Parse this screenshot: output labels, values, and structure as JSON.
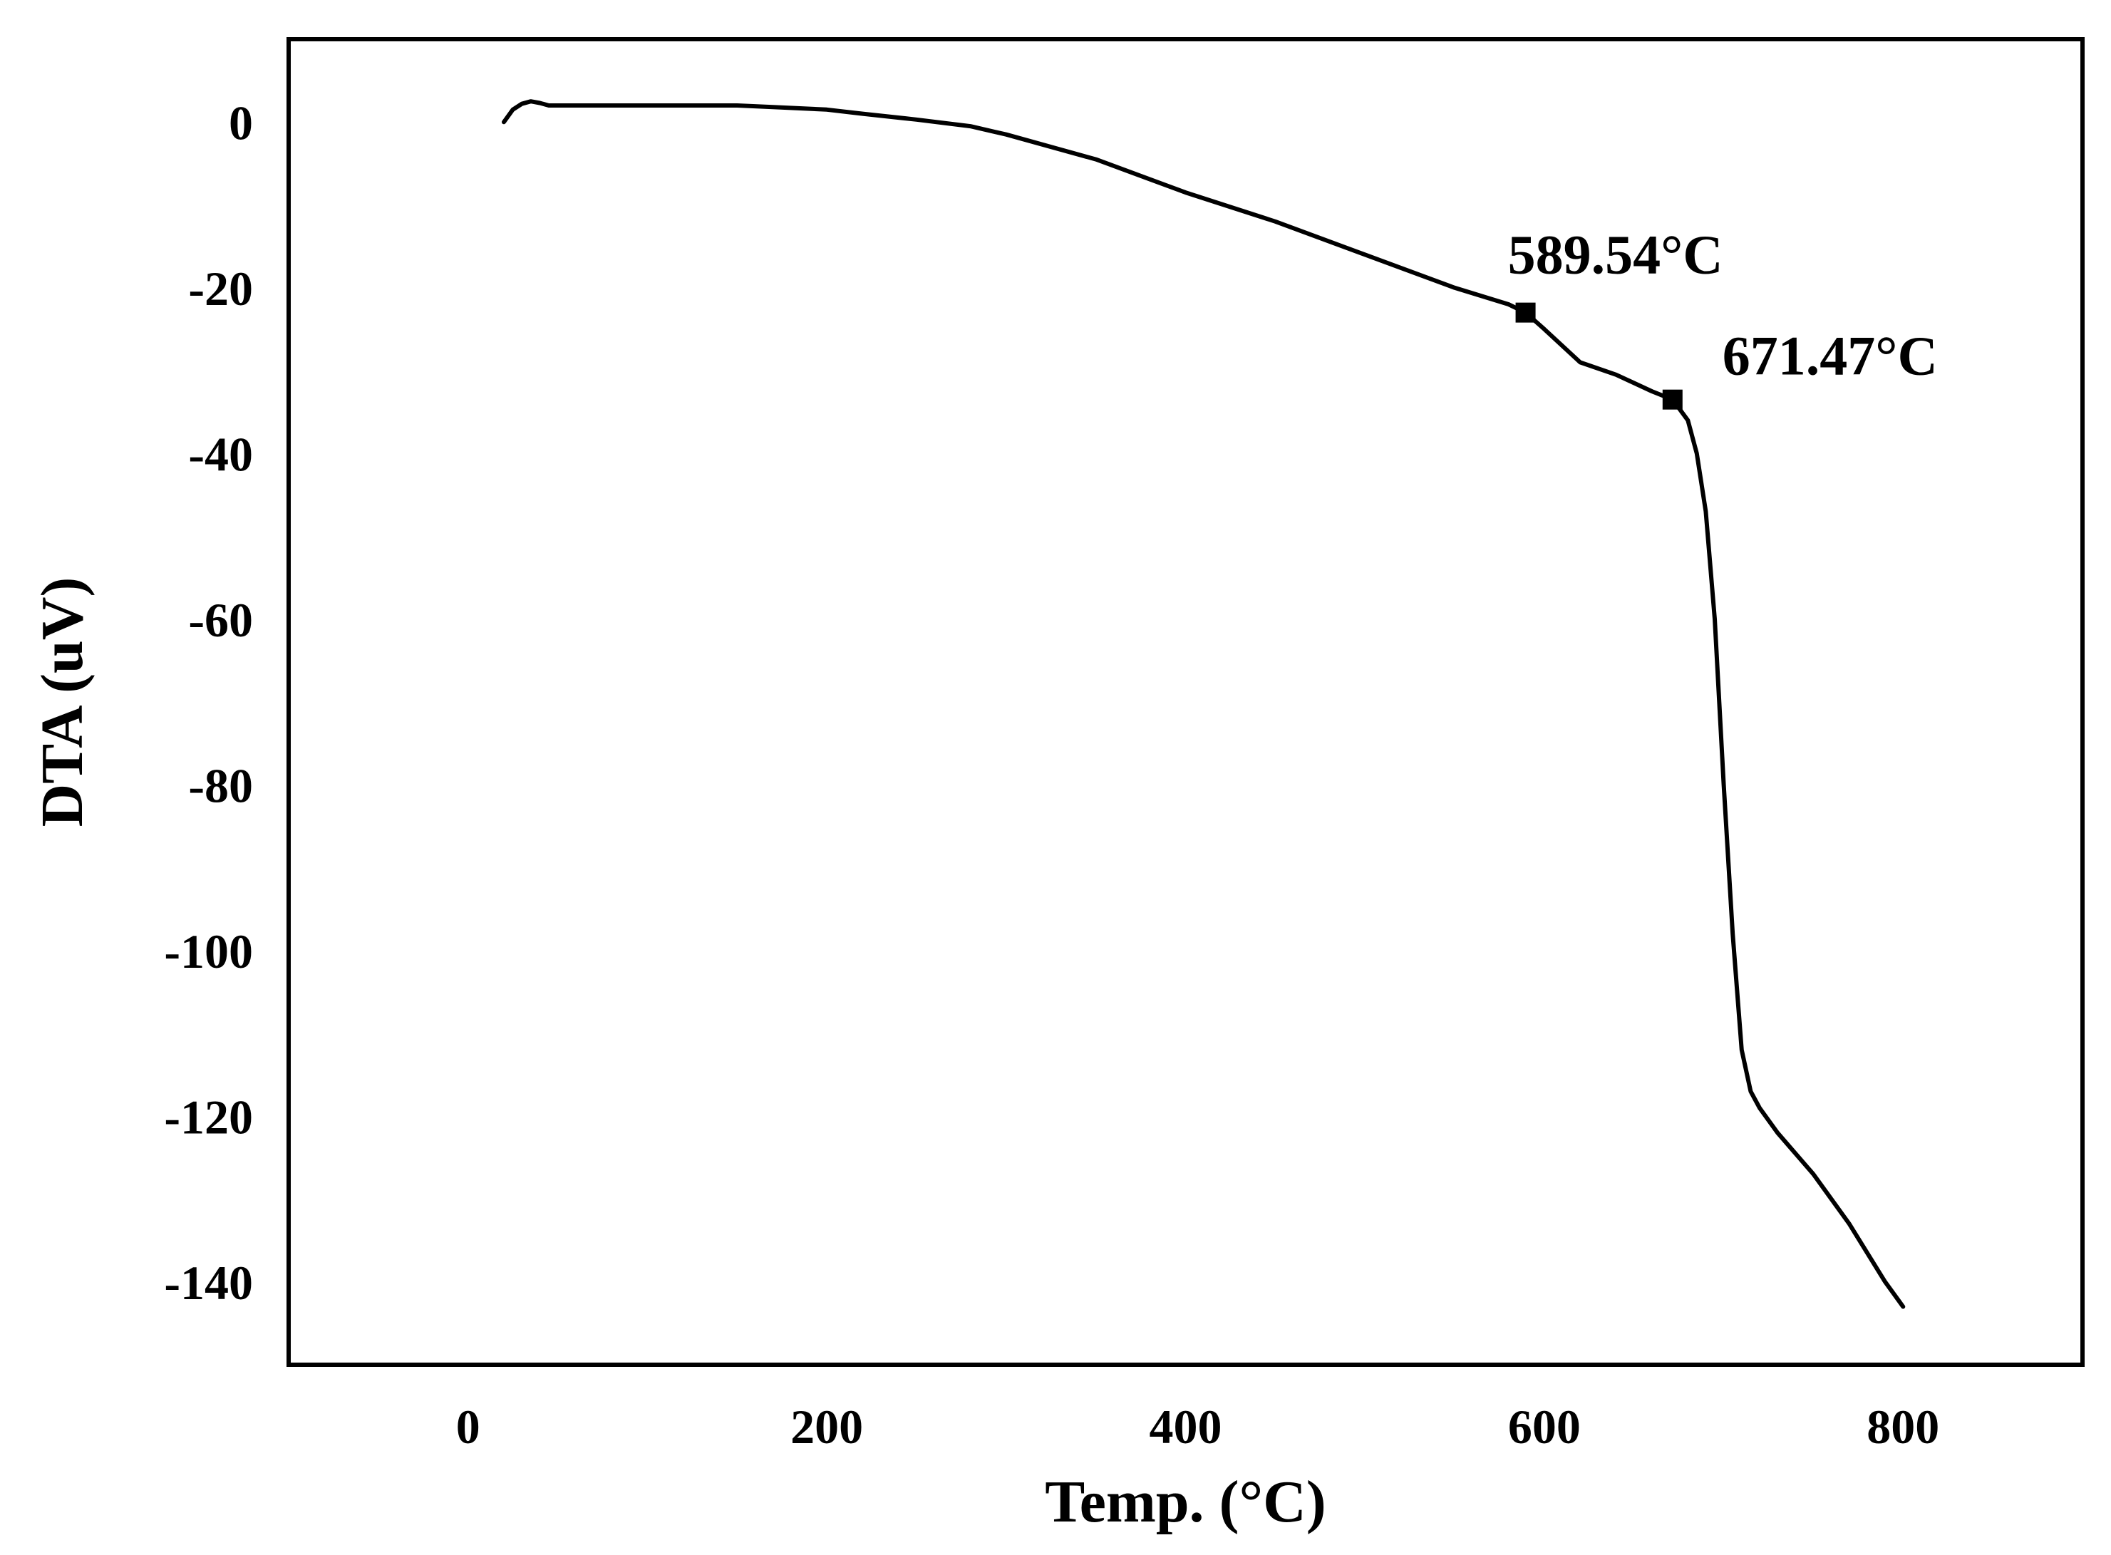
{
  "chart_data": {
    "type": "line",
    "title": "",
    "xlabel": "Temp. (°C)",
    "ylabel": "DTA (uV)",
    "xlim": [
      -100,
      900
    ],
    "ylim": [
      -150,
      10
    ],
    "x_ticks": [
      0,
      200,
      400,
      600,
      800
    ],
    "x_tick_labels": [
      "0",
      "200",
      "400",
      "600",
      "800"
    ],
    "y_ticks": [
      0,
      -20,
      -40,
      -60,
      -80,
      -100,
      -120,
      -140
    ],
    "y_tick_labels": [
      "0",
      "-20",
      "-40",
      "-60",
      "-80",
      "-100",
      "-120",
      "-140"
    ],
    "grid": false,
    "legend": "none",
    "line_color": "#000000",
    "series": [
      {
        "x": [
          20,
          25,
          30,
          35,
          40,
          45,
          50,
          100,
          150,
          170,
          200,
          220,
          250,
          280,
          300,
          350,
          400,
          450,
          500,
          550,
          580,
          589.5,
          600,
          620,
          640,
          660,
          671.5,
          680,
          685,
          690,
          695,
          700,
          705,
          710,
          715,
          720,
          730,
          750,
          770,
          790,
          800
        ],
        "y": [
          0,
          1.5,
          2.2,
          2.5,
          2.3,
          2.0,
          2.0,
          2.0,
          2.0,
          1.8,
          1.5,
          1.0,
          0.3,
          -0.5,
          -1.5,
          -4.5,
          -8.5,
          -12,
          -16,
          -20,
          -22,
          -23,
          -25,
          -29,
          -30.5,
          -32.5,
          -33.5,
          -36,
          -40,
          -47,
          -60,
          -80,
          -98,
          -112,
          -117,
          -119,
          -122,
          -127,
          -133,
          -140,
          -143
        ]
      }
    ],
    "markers": [
      {
        "x": 589.54,
        "y": -23,
        "label": "589.54°C"
      },
      {
        "x": 671.47,
        "y": -33.5,
        "label": "671.47°C"
      }
    ]
  }
}
